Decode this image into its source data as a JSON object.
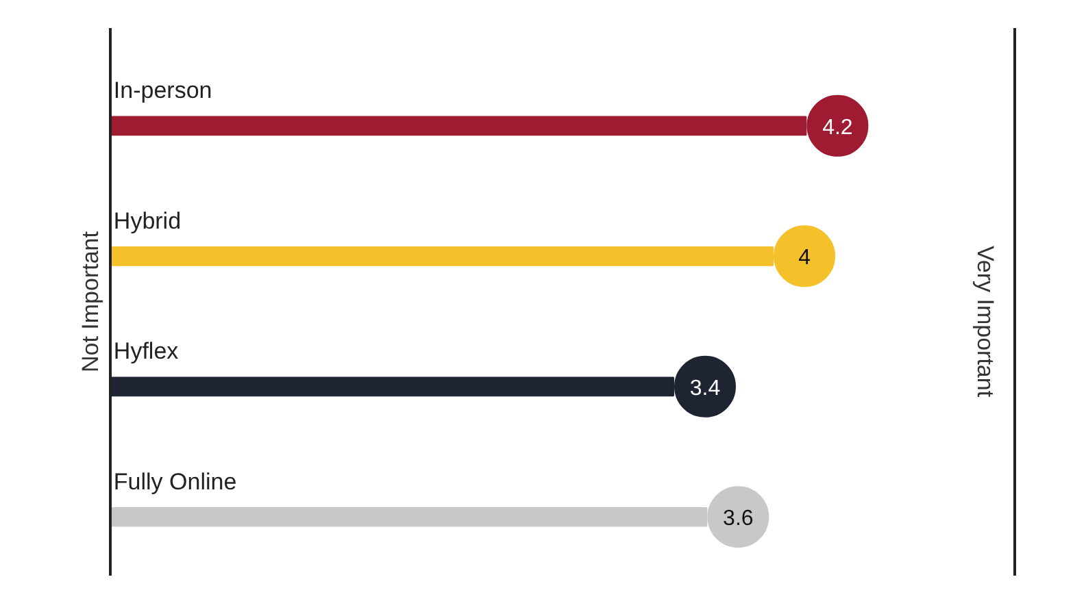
{
  "chart_data": {
    "type": "bar",
    "orientation": "horizontal",
    "categories": [
      "In-person",
      "Hybrid",
      "Hyflex",
      "Fully Online"
    ],
    "values": [
      4.2,
      4,
      3.4,
      3.6
    ],
    "colors": [
      "#9e1b32",
      "#f5c12a",
      "#1f2433",
      "#c8c8c8"
    ],
    "ylabel": "Not Important",
    "annotations": [
      "Very Important"
    ],
    "data_labels": true,
    "grid": false
  }
}
